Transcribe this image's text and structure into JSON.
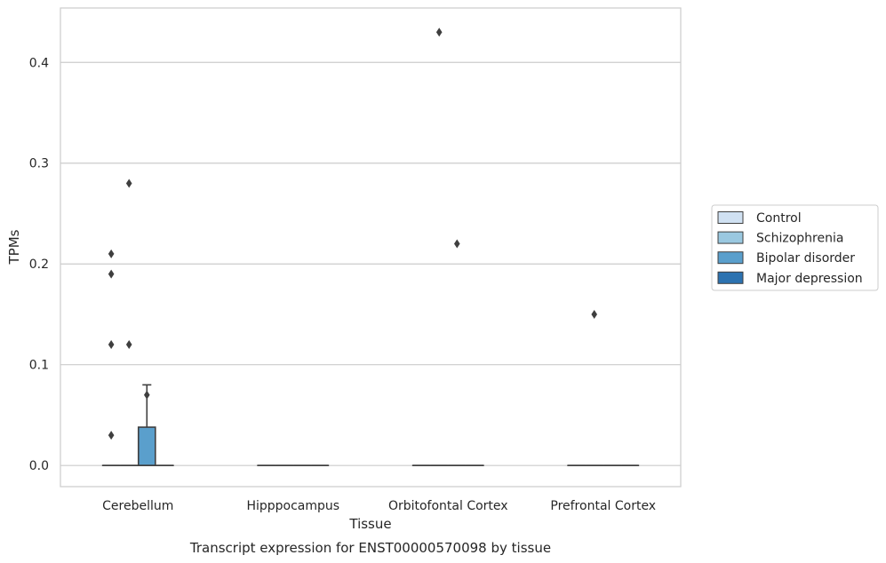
{
  "chart_data": {
    "type": "boxplot",
    "title": "Transcript expression for ENST00000570098 by tissue",
    "xlabel": "Tissue",
    "ylabel": "TPMs",
    "ylim": [
      -0.021,
      0.454
    ],
    "yticks": [
      "0.0",
      "0.1",
      "0.2",
      "0.3",
      "0.4"
    ],
    "grid": true,
    "legend_position": "right",
    "categories": [
      "Cerebellum",
      "Hipppocampus",
      "Orbitofontal Cortex",
      "Prefrontal Cortex"
    ],
    "series": [
      {
        "name": "Control",
        "color": "#d0e1f2",
        "boxes": [
          {
            "q1": 0,
            "median": 0,
            "q3": 0,
            "whisker_low": 0,
            "whisker_high": 0,
            "outliers": [
              0.21,
              0.19,
              0.12,
              0.03
            ]
          },
          {
            "q1": 0,
            "median": 0,
            "q3": 0,
            "whisker_low": 0,
            "whisker_high": 0,
            "outliers": []
          },
          {
            "q1": 0,
            "median": 0,
            "q3": 0,
            "whisker_low": 0,
            "whisker_high": 0,
            "outliers": []
          },
          {
            "q1": 0,
            "median": 0,
            "q3": 0,
            "whisker_low": 0,
            "whisker_high": 0,
            "outliers": []
          }
        ]
      },
      {
        "name": "Schizophrenia",
        "color": "#9ac8e0",
        "boxes": [
          {
            "q1": 0,
            "median": 0,
            "q3": 0,
            "whisker_low": 0,
            "whisker_high": 0,
            "outliers": [
              0.28,
              0.12
            ]
          },
          {
            "q1": 0,
            "median": 0,
            "q3": 0,
            "whisker_low": 0,
            "whisker_high": 0,
            "outliers": []
          },
          {
            "q1": 0,
            "median": 0,
            "q3": 0,
            "whisker_low": 0,
            "whisker_high": 0,
            "outliers": [
              0.43
            ]
          },
          {
            "q1": 0,
            "median": 0,
            "q3": 0,
            "whisker_low": 0,
            "whisker_high": 0,
            "outliers": [
              0.15
            ]
          }
        ]
      },
      {
        "name": "Bipolar disorder",
        "color": "#5a9fcc",
        "boxes": [
          {
            "q1": 0,
            "median": 0,
            "q3": 0.038,
            "whisker_low": 0,
            "whisker_high": 0.08,
            "outliers": [
              0.07
            ]
          },
          {
            "q1": 0,
            "median": 0,
            "q3": 0,
            "whisker_low": 0,
            "whisker_high": 0,
            "outliers": []
          },
          {
            "q1": 0,
            "median": 0,
            "q3": 0,
            "whisker_low": 0,
            "whisker_high": 0,
            "outliers": [
              0.22
            ]
          },
          {
            "q1": 0,
            "median": 0,
            "q3": 0,
            "whisker_low": 0,
            "whisker_high": 0,
            "outliers": []
          }
        ]
      },
      {
        "name": "Major depression",
        "color": "#2c72b0",
        "boxes": [
          {
            "q1": 0,
            "median": 0,
            "q3": 0,
            "whisker_low": 0,
            "whisker_high": 0,
            "outliers": []
          },
          {
            "q1": 0,
            "median": 0,
            "q3": 0,
            "whisker_low": 0,
            "whisker_high": 0,
            "outliers": []
          },
          {
            "q1": 0,
            "median": 0,
            "q3": 0,
            "whisker_low": 0,
            "whisker_high": 0,
            "outliers": []
          },
          {
            "q1": 0,
            "median": 0,
            "q3": 0,
            "whisker_low": 0,
            "whisker_high": 0,
            "outliers": []
          }
        ]
      }
    ]
  }
}
